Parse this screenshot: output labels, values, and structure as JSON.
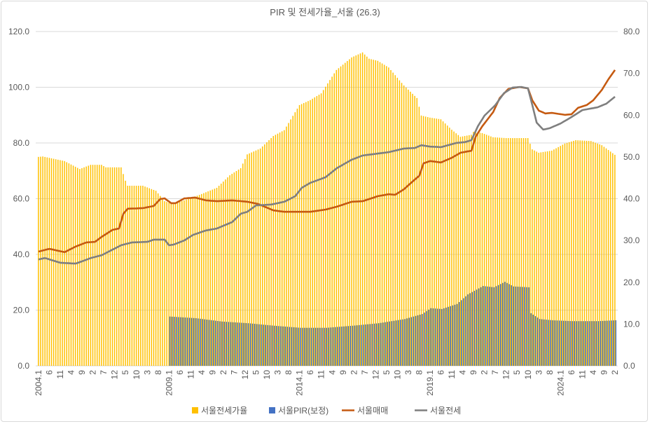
{
  "chart_data": {
    "type": "bar+line",
    "title": "PIR 및 전세가율_서울 (26.3)",
    "start": "2004.1",
    "months": 266,
    "x_tick_labels": [
      "2004.1",
      "6",
      "11",
      "4",
      "9",
      "2",
      "7",
      "12",
      "5",
      "10",
      "3",
      "8",
      "2009.1",
      "6",
      "11",
      "4",
      "9",
      "2",
      "7",
      "12",
      "5",
      "10",
      "3",
      "8",
      "2014.1",
      "6",
      "11",
      "4",
      "9",
      "2",
      "7",
      "12",
      "5",
      "10",
      "3",
      "8",
      "2019.1",
      "6",
      "11",
      "4",
      "9",
      "2",
      "7",
      "12",
      "5",
      "10",
      "3",
      "8",
      "2024.1",
      "6",
      "11",
      "4",
      "9",
      "2"
    ],
    "y_left": {
      "min": 0,
      "max": 120,
      "ticks": [
        "0.0",
        "20.0",
        "40.0",
        "60.0",
        "80.0",
        "100.0",
        "120.0"
      ]
    },
    "y_right": {
      "min": 0,
      "max": 80,
      "ticks": [
        "0.0",
        "10.0",
        "20.0",
        "30.0",
        "40.0",
        "50.0",
        "60.0",
        "70.0",
        "80.0"
      ]
    },
    "grid": true,
    "legend_position": "bottom",
    "series": [
      {
        "name": "서울전세가율",
        "type": "bar",
        "axis": "right",
        "color": "#FFC000",
        "points": [
          [
            "2004.1",
            50.0
          ],
          [
            "2004.3",
            50.1
          ],
          [
            "2005.1",
            49.0
          ],
          [
            "2005.8",
            47.1
          ],
          [
            "2006.1",
            48.1
          ],
          [
            "2006.6",
            48.1
          ],
          [
            "2006.8",
            47.5
          ],
          [
            "2007.3",
            47.5
          ],
          [
            "2007.5",
            44.3
          ],
          [
            "2007.6",
            43.1
          ],
          [
            "2008.1",
            43.1
          ],
          [
            "2008.7",
            41.9
          ],
          [
            "2008.11",
            39.4
          ],
          [
            "2009.3",
            38.7
          ],
          [
            "2009.8",
            39.6
          ],
          [
            "2010.3",
            40.9
          ],
          [
            "2010.11",
            42.6
          ],
          [
            "2011.5",
            45.6
          ],
          [
            "2011.10",
            47.3
          ],
          [
            "2012.1",
            50.6
          ],
          [
            "2012.7",
            52.0
          ],
          [
            "2013.1",
            55.0
          ],
          [
            "2013.6",
            56.4
          ],
          [
            "2014.1",
            62.4
          ],
          [
            "2014.6",
            63.6
          ],
          [
            "2014.11",
            65.2
          ],
          [
            "2015.6",
            70.8
          ],
          [
            "2016.1",
            73.8
          ],
          [
            "2016.6",
            75.0
          ],
          [
            "2016.9",
            73.5
          ],
          [
            "2017.1",
            73.0
          ],
          [
            "2017.6",
            71.4
          ],
          [
            "2018.1",
            67.1
          ],
          [
            "2018.7",
            64.1
          ],
          [
            "2018.9",
            59.9
          ],
          [
            "2019.1",
            59.4
          ],
          [
            "2019.6",
            59.0
          ],
          [
            "2019.11",
            56.5
          ],
          [
            "2020.3",
            54.8
          ],
          [
            "2020.8",
            55.3
          ],
          [
            "2020.9",
            56.0
          ],
          [
            "2021.1",
            55.7
          ],
          [
            "2021.6",
            54.7
          ],
          [
            "2021.12",
            54.5
          ],
          [
            "2022.10",
            54.5
          ],
          [
            "2022.12",
            51.8
          ],
          [
            "2023.3",
            51.0
          ],
          [
            "2023.9",
            51.5
          ],
          [
            "2024.3",
            53.2
          ],
          [
            "2024.8",
            54.0
          ],
          [
            "2025.3",
            53.8
          ],
          [
            "2025.8",
            52.8
          ],
          [
            "2026.2",
            50.5
          ]
        ]
      },
      {
        "name": "서울PIR(보정)",
        "type": "bar",
        "axis": "right",
        "color": "#4472C4",
        "points": [
          [
            "2009.1",
            11.8
          ],
          [
            "2010.1",
            11.4
          ],
          [
            "2011.1",
            10.6
          ],
          [
            "2012.1",
            10.2
          ],
          [
            "2013.1",
            9.6
          ],
          [
            "2014.1",
            9.1
          ],
          [
            "2015.1",
            9.1
          ],
          [
            "2016.1",
            9.6
          ],
          [
            "2017.1",
            10.2
          ],
          [
            "2018.1",
            11.2
          ],
          [
            "2018.9",
            12.4
          ],
          [
            "2019.1",
            13.8
          ],
          [
            "2019.6",
            13.6
          ],
          [
            "2020.1",
            14.8
          ],
          [
            "2020.6",
            17.1
          ],
          [
            "2021.1",
            19.1
          ],
          [
            "2021.6",
            18.8
          ],
          [
            "2021.11",
            20.1
          ],
          [
            "2022.3",
            19.0
          ],
          [
            "2022.10",
            18.8
          ],
          [
            "2022.11",
            12.6
          ],
          [
            "2023.3",
            11.2
          ],
          [
            "2023.9",
            10.9
          ],
          [
            "2024.6",
            10.7
          ],
          [
            "2025.6",
            10.7
          ],
          [
            "2026.2",
            10.9
          ]
        ]
      },
      {
        "name": "서울매매",
        "type": "line",
        "axis": "left",
        "color": "#C55A11",
        "points": [
          [
            "2004.1",
            41.0
          ],
          [
            "2004.6",
            42.0
          ],
          [
            "2005.1",
            40.8
          ],
          [
            "2005.6",
            42.8
          ],
          [
            "2005.11",
            44.3
          ],
          [
            "2006.3",
            44.5
          ],
          [
            "2006.6",
            46.3
          ],
          [
            "2006.11",
            48.8
          ],
          [
            "2007.2",
            49.3
          ],
          [
            "2007.4",
            54.6
          ],
          [
            "2007.6",
            56.4
          ],
          [
            "2008.1",
            56.6
          ],
          [
            "2008.6",
            57.4
          ],
          [
            "2008.9",
            59.9
          ],
          [
            "2008.11",
            60.1
          ],
          [
            "2009.2",
            58.4
          ],
          [
            "2009.4",
            58.4
          ],
          [
            "2009.8",
            60.1
          ],
          [
            "2010.1",
            60.4
          ],
          [
            "2010.6",
            59.4
          ],
          [
            "2010.11",
            59.1
          ],
          [
            "2011.6",
            59.4
          ],
          [
            "2012.1",
            58.9
          ],
          [
            "2012.6",
            58.1
          ],
          [
            "2013.1",
            55.8
          ],
          [
            "2013.6",
            55.3
          ],
          [
            "2014.1",
            55.3
          ],
          [
            "2014.6",
            55.3
          ],
          [
            "2015.1",
            56.1
          ],
          [
            "2015.6",
            57.1
          ],
          [
            "2016.1",
            58.9
          ],
          [
            "2016.6",
            59.1
          ],
          [
            "2017.1",
            60.9
          ],
          [
            "2017.6",
            61.6
          ],
          [
            "2017.9",
            61.4
          ],
          [
            "2018.1",
            63.4
          ],
          [
            "2018.6",
            66.9
          ],
          [
            "2018.8",
            68.2
          ],
          [
            "2018.10",
            72.7
          ],
          [
            "2019.1",
            73.5
          ],
          [
            "2019.6",
            73.0
          ],
          [
            "2019.11",
            74.7
          ],
          [
            "2020.3",
            76.5
          ],
          [
            "2020.8",
            77.2
          ],
          [
            "2020.10",
            82.3
          ],
          [
            "2021.1",
            86.0
          ],
          [
            "2021.6",
            91.1
          ],
          [
            "2021.9",
            96.1
          ],
          [
            "2022.1",
            99.4
          ],
          [
            "2022.6",
            100.1
          ],
          [
            "2022.10",
            99.6
          ],
          [
            "2022.12",
            95.3
          ],
          [
            "2023.3",
            91.6
          ],
          [
            "2023.6",
            90.6
          ],
          [
            "2023.9",
            90.8
          ],
          [
            "2024.3",
            90.1
          ],
          [
            "2024.6",
            90.3
          ],
          [
            "2024.9",
            92.6
          ],
          [
            "2025.1",
            93.6
          ],
          [
            "2025.4",
            95.3
          ],
          [
            "2025.8",
            99.1
          ],
          [
            "2025.11",
            102.9
          ],
          [
            "2026.2",
            106.2
          ]
        ]
      },
      {
        "name": "서울전세",
        "type": "line",
        "axis": "left",
        "color": "#7F7F7F",
        "points": [
          [
            "2004.1",
            38.2
          ],
          [
            "2004.4",
            38.7
          ],
          [
            "2004.11",
            37.0
          ],
          [
            "2005.6",
            36.7
          ],
          [
            "2005.9",
            37.5
          ],
          [
            "2006.1",
            38.7
          ],
          [
            "2006.6",
            39.7
          ],
          [
            "2006.10",
            41.3
          ],
          [
            "2007.3",
            43.3
          ],
          [
            "2007.8",
            44.3
          ],
          [
            "2008.3",
            44.5
          ],
          [
            "2008.6",
            45.3
          ],
          [
            "2008.11",
            45.3
          ],
          [
            "2009.1",
            43.3
          ],
          [
            "2009.3",
            43.5
          ],
          [
            "2009.8",
            45.0
          ],
          [
            "2009.12",
            47.0
          ],
          [
            "2010.6",
            48.6
          ],
          [
            "2010.11",
            49.3
          ],
          [
            "2011.6",
            51.6
          ],
          [
            "2011.10",
            54.6
          ],
          [
            "2012.1",
            55.3
          ],
          [
            "2012.5",
            57.6
          ],
          [
            "2012.12",
            57.9
          ],
          [
            "2013.6",
            58.9
          ],
          [
            "2013.11",
            60.9
          ],
          [
            "2014.2",
            63.9
          ],
          [
            "2014.6",
            65.7
          ],
          [
            "2015.1",
            67.7
          ],
          [
            "2015.6",
            70.9
          ],
          [
            "2016.1",
            74.0
          ],
          [
            "2016.6",
            75.5
          ],
          [
            "2017.1",
            76.2
          ],
          [
            "2017.6",
            76.7
          ],
          [
            "2018.1",
            78.0
          ],
          [
            "2018.6",
            78.2
          ],
          [
            "2018.9",
            79.2
          ],
          [
            "2019.1",
            78.7
          ],
          [
            "2019.6",
            78.5
          ],
          [
            "2020.1",
            80.0
          ],
          [
            "2020.5",
            80.3
          ],
          [
            "2020.8",
            81.0
          ],
          [
            "2020.11",
            86.0
          ],
          [
            "2021.2",
            89.8
          ],
          [
            "2021.7",
            93.6
          ],
          [
            "2021.11",
            97.9
          ],
          [
            "2022.3",
            99.9
          ],
          [
            "2022.7",
            100.1
          ],
          [
            "2022.10",
            99.6
          ],
          [
            "2022.12",
            93.6
          ],
          [
            "2023.2",
            87.3
          ],
          [
            "2023.5",
            84.8
          ],
          [
            "2023.8",
            85.3
          ],
          [
            "2024.1",
            87.0
          ],
          [
            "2024.6",
            89.3
          ],
          [
            "2024.11",
            91.8
          ],
          [
            "2025.6",
            92.8
          ],
          [
            "2025.10",
            94.1
          ],
          [
            "2026.2",
            96.6
          ]
        ]
      }
    ]
  }
}
